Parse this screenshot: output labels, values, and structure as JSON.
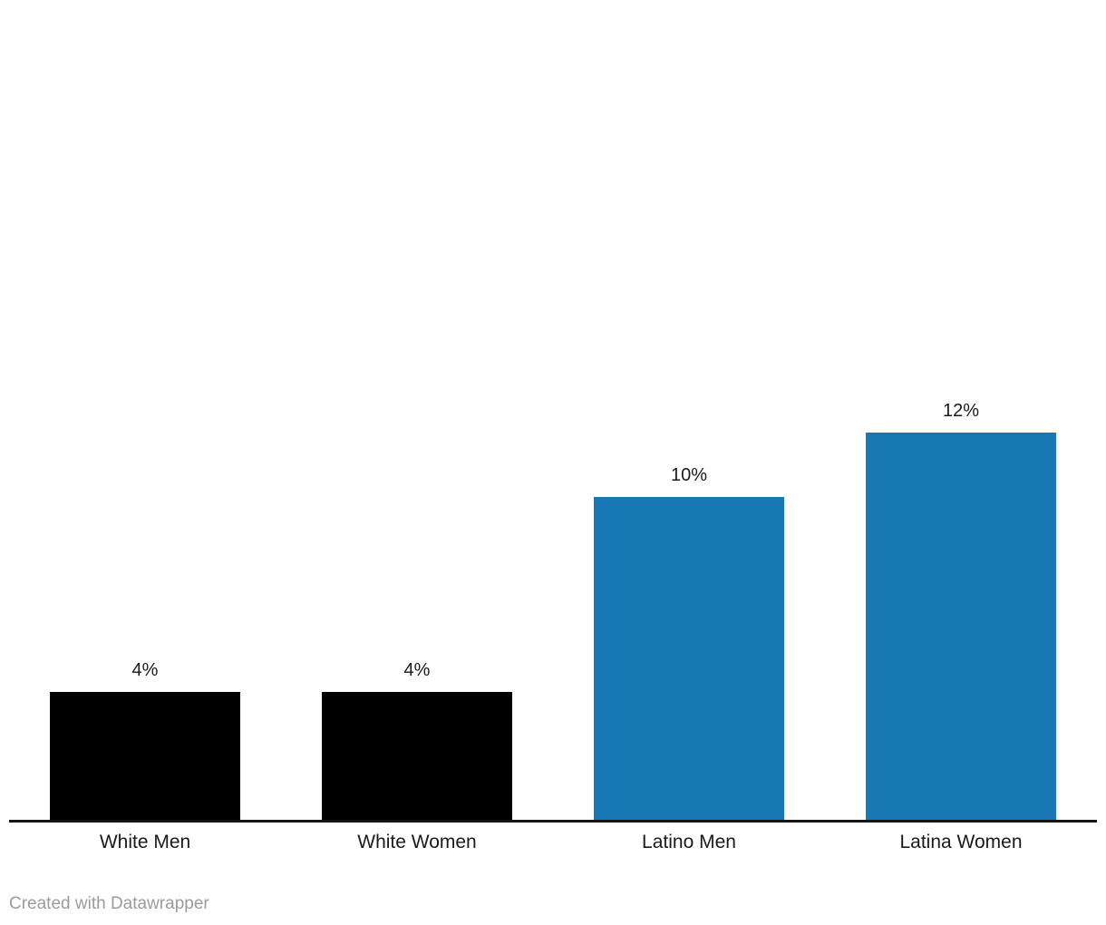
{
  "chart_data": {
    "type": "bar",
    "categories": [
      "White Men",
      "White Women",
      "Latino Men",
      "Latina Women"
    ],
    "values": [
      4,
      4,
      10,
      12
    ],
    "value_labels": [
      "4%",
      "4%",
      "10%",
      "12%"
    ],
    "bar_colors": [
      "#000000",
      "#000000",
      "#1778b4",
      "#1778b4"
    ],
    "title": "",
    "xlabel": "",
    "ylabel": "",
    "ylim": [
      0,
      12
    ],
    "grid": false,
    "legend": "none",
    "label_position": "above-bars",
    "baseline_color": "#151515"
  },
  "footer": {
    "credit": "Created with Datawrapper"
  },
  "colors": {
    "background": "#ffffff",
    "axis_line": "#151515",
    "label_text": "#1a1a1a",
    "footer_text": "#9b9b9b",
    "accent_blue": "#1778b4",
    "bar_black": "#000000"
  }
}
